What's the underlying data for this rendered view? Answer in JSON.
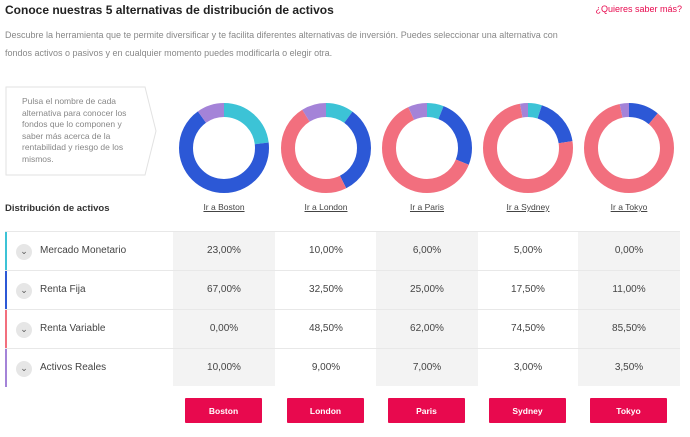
{
  "header": {
    "title": "Conoce nuestras 5 alternativas de distribución de activos",
    "more_link": "¿Quieres saber más?",
    "description": "Descubre la herramienta que te permite diversificar y te facilita diferentes alternativas de inversión. Puedes seleccionar una alternativa con fondos activos o pasivos y en cualquier momento puedes modificarla o elegir otra."
  },
  "hint": "Pulsa el nombre de cada alternativa para conocer los fondos que lo componen y saber más acerca de la rentabilidad y riesgo de los mismos.",
  "colors": {
    "mercado_monetario": "#3cc3d6",
    "renta_fija": "#2c58d6",
    "renta_variable": "#f26f7e",
    "activos_reales": "#a483d8",
    "accent": "#e8094e"
  },
  "table": {
    "title": "Distribución de activos",
    "columns": [
      {
        "link": "Ir a Boston",
        "button": "Boston"
      },
      {
        "link": "Ir a London",
        "button": "London"
      },
      {
        "link": "Ir a Paris",
        "button": "Paris"
      },
      {
        "link": "Ir a Sydney",
        "button": "Sydney"
      },
      {
        "link": "Ir a Tokyo",
        "button": "Tokyo"
      }
    ],
    "rows": [
      {
        "label": "Mercado Monetario",
        "values": [
          "23,00%",
          "10,00%",
          "6,00%",
          "5,00%",
          "0,00%"
        ]
      },
      {
        "label": "Renta Fija",
        "values": [
          "67,00%",
          "32,50%",
          "25,00%",
          "17,50%",
          "11,00%"
        ]
      },
      {
        "label": "Renta Variable",
        "values": [
          "0,00%",
          "48,50%",
          "62,00%",
          "74,50%",
          "85,50%"
        ]
      },
      {
        "label": "Activos Reales",
        "values": [
          "10,00%",
          "9,00%",
          "7,00%",
          "3,00%",
          "3,50%"
        ]
      }
    ]
  }
}
